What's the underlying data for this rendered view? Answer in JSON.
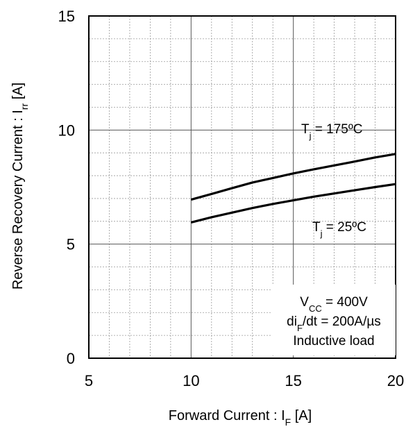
{
  "chart_data": {
    "type": "line",
    "title": "",
    "xlabel": {
      "main": "Forward Current : I",
      "sub": "F",
      "unit": " [A]"
    },
    "ylabel": {
      "main": "Reverse Recovery Current : I",
      "sub": "rr",
      "unit": " [A]"
    },
    "xlim": [
      5,
      20
    ],
    "ylim": [
      0,
      15
    ],
    "x_ticks": [
      5,
      10,
      15,
      20
    ],
    "x_tick_labels": [
      "5",
      "10",
      "15",
      "20"
    ],
    "y_ticks": [
      0,
      5,
      10,
      15
    ],
    "y_tick_labels": [
      "0",
      "5",
      "10",
      "15"
    ],
    "grid": true,
    "minor_grid_step_x": 1,
    "minor_grid_step_y": 1,
    "series": [
      {
        "x": [
          10,
          11,
          12,
          13,
          14,
          15,
          16,
          17,
          18,
          19,
          20
        ],
        "y": [
          6.95,
          7.2,
          7.45,
          7.7,
          7.9,
          8.1,
          8.28,
          8.45,
          8.62,
          8.8,
          8.95
        ],
        "color": "#000000"
      },
      {
        "x": [
          10,
          11,
          12,
          13,
          14,
          15,
          16,
          17,
          18,
          19,
          20
        ],
        "y": [
          5.95,
          6.18,
          6.38,
          6.58,
          6.76,
          6.92,
          7.08,
          7.22,
          7.36,
          7.5,
          7.63
        ],
        "color": "#000000"
      }
    ],
    "annotations": {
      "curve_hot": {
        "main": "T",
        "sub": "j",
        "rest": " = 175ºC"
      },
      "curve_cold": {
        "main": "T",
        "sub": "j",
        "rest": " = 25ºC"
      },
      "conditions": [
        {
          "main": "V",
          "sub": "CC",
          "rest": " = 400V"
        },
        {
          "main": "di",
          "sub": "F",
          "rest": "/dt = 200A/µs"
        },
        {
          "main": "Inductive load",
          "sub": "",
          "rest": ""
        }
      ]
    }
  }
}
